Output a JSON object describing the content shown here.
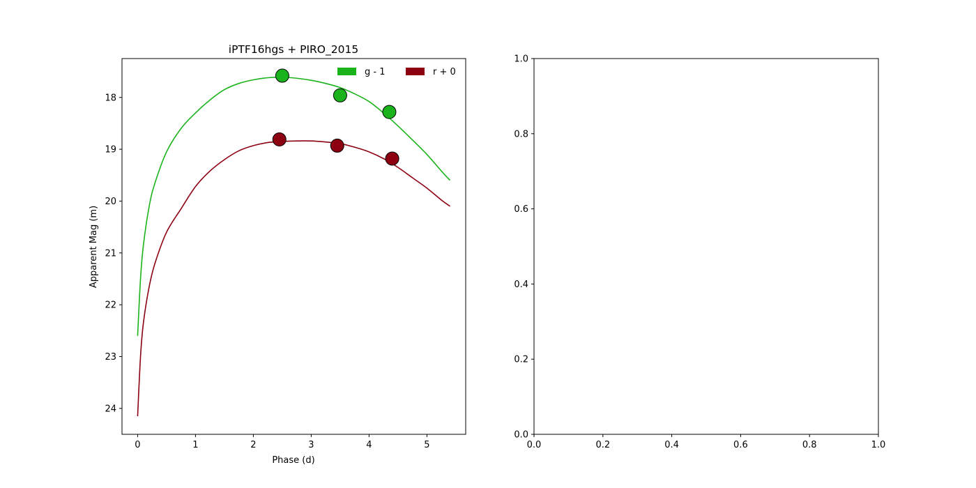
{
  "chart_data": [
    {
      "type": "line",
      "title": "iPTF16hgs + PIRO_2015",
      "xlabel": "Phase (d)",
      "ylabel": "Apparent Mag (m)",
      "xlim": [
        -0.27,
        5.67
      ],
      "ylim": [
        24.5,
        17.25
      ],
      "y_inverted": true,
      "xticks": [
        "0",
        "1",
        "2",
        "3",
        "4",
        "5"
      ],
      "yticks": [
        "18",
        "19",
        "20",
        "21",
        "22",
        "23",
        "24"
      ],
      "legend_position": "top-right",
      "series": [
        {
          "name": "g - 1",
          "color": "#1bb31b",
          "model_curve": {
            "x": [
              0.0,
              0.05,
              0.1,
              0.2,
              0.3,
              0.5,
              0.75,
              1.0,
              1.25,
              1.5,
              1.75,
              2.0,
              2.25,
              2.5,
              2.75,
              3.0,
              3.25,
              3.5,
              3.75,
              4.0,
              4.25,
              4.5,
              4.75,
              5.0,
              5.25,
              5.4
            ],
            "y": [
              22.6,
              21.5,
              20.85,
              20.1,
              19.65,
              19.05,
              18.6,
              18.3,
              18.05,
              17.85,
              17.73,
              17.66,
              17.62,
              17.61,
              17.63,
              17.67,
              17.73,
              17.81,
              17.93,
              18.08,
              18.3,
              18.55,
              18.82,
              19.1,
              19.42,
              19.6
            ]
          },
          "observations": {
            "x": [
              2.5,
              3.5,
              4.35
            ],
            "y": [
              17.58,
              17.96,
              18.28
            ]
          }
        },
        {
          "name": "r + 0",
          "color": "#8c0011",
          "model_curve": {
            "x": [
              0.0,
              0.05,
              0.1,
              0.2,
              0.3,
              0.5,
              0.75,
              1.0,
              1.25,
              1.5,
              1.75,
              2.0,
              2.25,
              2.5,
              2.75,
              3.0,
              3.25,
              3.5,
              3.75,
              4.0,
              4.25,
              4.5,
              4.75,
              5.0,
              5.25,
              5.4
            ],
            "y": [
              24.15,
              23.0,
              22.35,
              21.65,
              21.2,
              20.6,
              20.15,
              19.72,
              19.42,
              19.2,
              19.03,
              18.93,
              18.87,
              18.85,
              18.84,
              18.84,
              18.86,
              18.89,
              18.96,
              19.05,
              19.18,
              19.35,
              19.55,
              19.75,
              19.98,
              20.1
            ]
          },
          "observations": {
            "x": [
              2.45,
              3.45,
              4.4
            ],
            "y": [
              18.81,
              18.93,
              19.18
            ]
          }
        }
      ]
    },
    {
      "type": "line",
      "title": "",
      "xlabel": "",
      "ylabel": "",
      "xlim": [
        0.0,
        1.0
      ],
      "ylim": [
        0.0,
        1.0
      ],
      "xticks": [
        "0.0",
        "0.2",
        "0.4",
        "0.6",
        "0.8",
        "1.0"
      ],
      "yticks": [
        "0.0",
        "0.2",
        "0.4",
        "0.6",
        "0.8",
        "1.0"
      ],
      "series": []
    }
  ]
}
